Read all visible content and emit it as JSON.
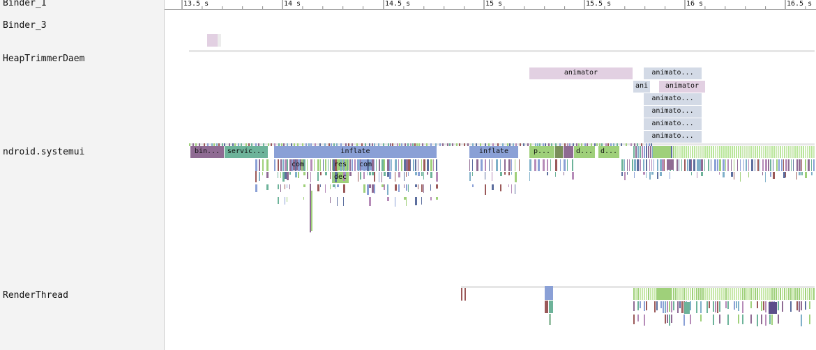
{
  "threads": [
    {
      "id": "binder1",
      "name": "Binder_1"
    },
    {
      "id": "binder3",
      "name": "Binder_3"
    },
    {
      "id": "heap",
      "name": "HeapTrimmerDaem"
    },
    {
      "id": "systemui",
      "name": "ndroid.systemui"
    },
    {
      "id": "render",
      "name": "RenderThread"
    }
  ],
  "ruler": {
    "ticks": [
      "13.5 s",
      "14 s",
      "14.5 s",
      "15 s",
      "15.5 s",
      "16 s",
      "16.5 s"
    ]
  },
  "slices": {
    "heap_animator": "animator",
    "heap_animato_1": "animato...",
    "heap_ani": "ani",
    "heap_animator_2": "animator",
    "heap_animato_2": "animato...",
    "heap_animato_3": "animato...",
    "heap_animato_4": "animato...",
    "heap_animato_5": "animato...",
    "sys_bin": "bin...",
    "sys_servic": "servic...",
    "sys_inflate_1": "inflate",
    "sys_inflate_2": "inflate",
    "sys_p": "p...",
    "sys_d1": "d...",
    "sys_d2": "d...",
    "sys_com1": "com",
    "sys_res": "res",
    "sys_com2": "com",
    "sys_dec": "dec"
  },
  "colors": {
    "purple": "#8f6b93",
    "teal": "#6db39a",
    "blue": "#8aa0d6",
    "green": "#9fd07a",
    "pink": "#e2d0e2",
    "slate": "#d3dae6",
    "brown": "#9a5858",
    "grey": "#c8c8c8"
  }
}
